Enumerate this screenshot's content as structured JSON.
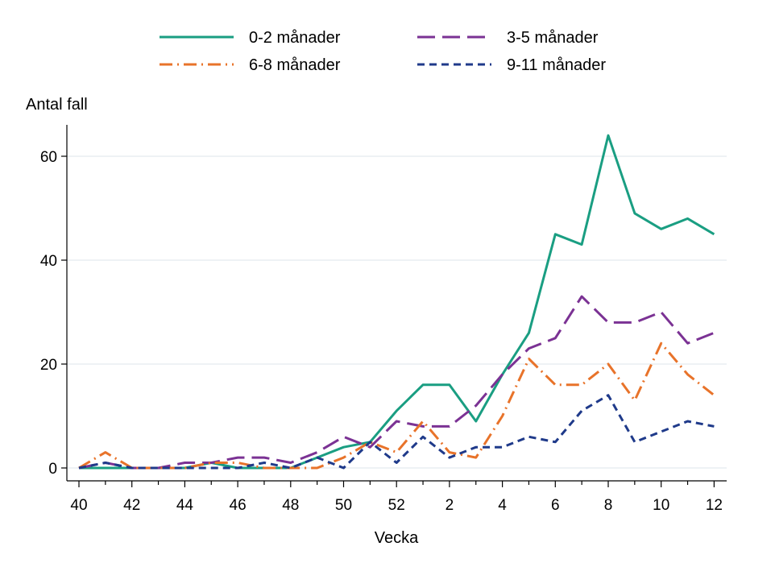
{
  "chart_data": {
    "type": "line",
    "title": "",
    "xlabel": "Vecka",
    "ylabel": "Antal fall",
    "x": [
      40,
      41,
      42,
      43,
      44,
      45,
      46,
      47,
      48,
      49,
      50,
      51,
      52,
      1,
      2,
      3,
      4,
      5,
      6,
      7,
      8,
      9,
      10,
      11,
      12
    ],
    "xticks": [
      "40",
      "42",
      "44",
      "46",
      "48",
      "50",
      "52",
      "2",
      "4",
      "6",
      "8",
      "10",
      "12"
    ],
    "yticks": [
      "0",
      "20",
      "40",
      "60"
    ],
    "ylim": [
      0,
      64
    ],
    "grid": true,
    "legend_position": "top",
    "series": [
      {
        "name": "0-2 månader",
        "color": "#1a9e82",
        "style": "solid",
        "values": [
          0,
          0,
          0,
          0,
          0,
          1,
          0,
          0,
          0,
          2,
          4,
          5,
          11,
          16,
          16,
          9,
          18,
          26,
          45,
          43,
          64,
          49,
          46,
          48,
          45
        ]
      },
      {
        "name": "3-5 månader",
        "color": "#7b3294",
        "style": "longdash",
        "values": [
          0,
          1,
          0,
          0,
          1,
          1,
          2,
          2,
          1,
          3,
          6,
          4,
          9,
          8,
          8,
          12,
          18,
          23,
          25,
          33,
          28,
          28,
          30,
          24,
          26
        ]
      },
      {
        "name": "6-8 månader",
        "color": "#e8732a",
        "style": "dashdot",
        "values": [
          0,
          3,
          0,
          0,
          0,
          1,
          1,
          0,
          0,
          0,
          2,
          5,
          3,
          9,
          3,
          2,
          10,
          21,
          16,
          16,
          20,
          13,
          24,
          18,
          14
        ]
      },
      {
        "name": "9-11 månader",
        "color": "#1f3a8a",
        "style": "shortdash",
        "values": [
          0,
          1,
          0,
          0,
          0,
          0,
          0,
          1,
          0,
          2,
          0,
          5,
          1,
          6,
          2,
          4,
          4,
          6,
          5,
          11,
          14,
          5,
          7,
          9,
          8
        ]
      }
    ]
  }
}
